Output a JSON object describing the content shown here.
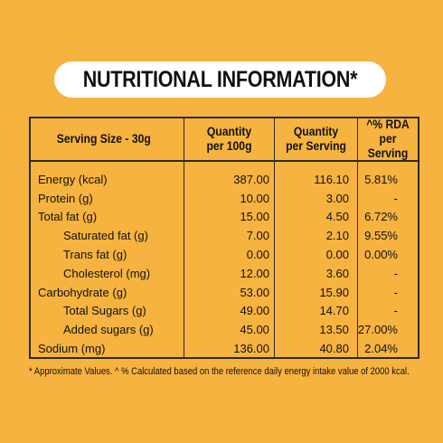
{
  "title": "NUTRITIONAL INFORMATION*",
  "table": {
    "headers": {
      "serving": "Serving Size - 30g",
      "q100_line1": "Quantity",
      "q100_line2": "per 100g",
      "qs_line1": "Quantity",
      "qs_line2": "per Serving",
      "rda_line1": "^% RDA",
      "rda_line2": "per Serving"
    },
    "rows": [
      {
        "name": "Energy (kcal)",
        "indent": false,
        "per100": "387.00",
        "perServing": "116.10",
        "rda": "5.81%"
      },
      {
        "name": "Protein (g)",
        "indent": false,
        "per100": "10.00",
        "perServing": "3.00",
        "rda": "-"
      },
      {
        "name": "Total fat (g)",
        "indent": false,
        "per100": "15.00",
        "perServing": "4.50",
        "rda": "6.72%"
      },
      {
        "name": "Saturated fat (g)",
        "indent": true,
        "per100": "7.00",
        "perServing": "2.10",
        "rda": "9.55%"
      },
      {
        "name": "Trans fat (g)",
        "indent": true,
        "per100": "0.00",
        "perServing": "0.00",
        "rda": "0.00%"
      },
      {
        "name": "Cholesterol (mg)",
        "indent": true,
        "per100": "12.00",
        "perServing": "3.60",
        "rda": "-"
      },
      {
        "name": "Carbohydrate (g)",
        "indent": false,
        "per100": "53.00",
        "perServing": "15.90",
        "rda": "-"
      },
      {
        "name": "Total Sugars (g)",
        "indent": true,
        "per100": "49.00",
        "perServing": "14.70",
        "rda": "-"
      },
      {
        "name": "Added sugars (g)",
        "indent": true,
        "per100": "45.00",
        "perServing": "13.50",
        "rda": "27.00%"
      },
      {
        "name": "Sodium (mg)",
        "indent": false,
        "per100": "136.00",
        "perServing": "40.80",
        "rda": "2.04%"
      }
    ]
  },
  "footnote": "* Approximate Values. ^ % Calculated based on the reference daily energy intake value of 2000 kcal.",
  "colors": {
    "background": "#F6B33F",
    "pill": "#FFFFFF",
    "text": "#111111",
    "rule": "#2A2A2A"
  }
}
